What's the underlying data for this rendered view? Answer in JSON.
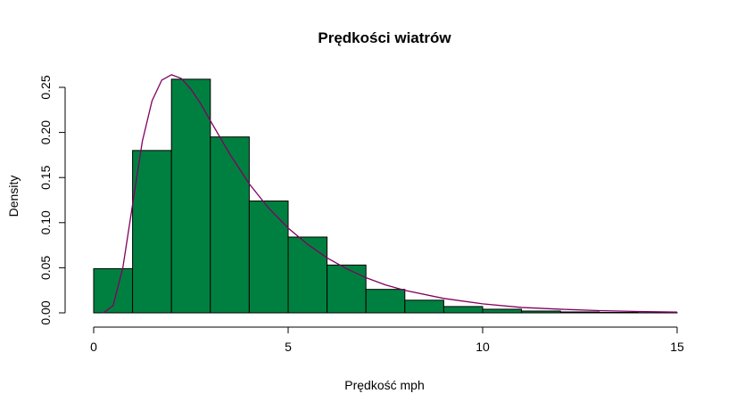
{
  "chart_data": {
    "type": "histogram",
    "title": "Prędkości wiatrów",
    "xlabel": "Prędkość mph",
    "ylabel": "Density",
    "xlim": [
      0,
      15
    ],
    "ylim": [
      0,
      0.25
    ],
    "x_ticks": [
      "0",
      "5",
      "10",
      "15"
    ],
    "y_ticks": [
      "0.00",
      "0.05",
      "0.10",
      "0.15",
      "0.20",
      "0.25"
    ],
    "bins": [
      {
        "from": 0,
        "to": 1,
        "density": 0.049
      },
      {
        "from": 1,
        "to": 2,
        "density": 0.18
      },
      {
        "from": 2,
        "to": 3,
        "density": 0.259
      },
      {
        "from": 3,
        "to": 4,
        "density": 0.195
      },
      {
        "from": 4,
        "to": 5,
        "density": 0.124
      },
      {
        "from": 5,
        "to": 6,
        "density": 0.084
      },
      {
        "from": 6,
        "to": 7,
        "density": 0.053
      },
      {
        "from": 7,
        "to": 8,
        "density": 0.026
      },
      {
        "from": 8,
        "to": 9,
        "density": 0.014
      },
      {
        "from": 9,
        "to": 10,
        "density": 0.007
      },
      {
        "from": 10,
        "to": 11,
        "density": 0.004
      },
      {
        "from": 11,
        "to": 12,
        "density": 0.002
      },
      {
        "from": 12,
        "to": 13,
        "density": 0.001
      },
      {
        "from": 13,
        "to": 14,
        "density": 0.0005
      },
      {
        "from": 14,
        "to": 15,
        "density": 0.0003
      }
    ],
    "density_curve": {
      "x": [
        0.25,
        0.5,
        0.75,
        1.0,
        1.25,
        1.5,
        1.75,
        2.0,
        2.25,
        2.5,
        2.75,
        3.0,
        3.5,
        4.0,
        4.5,
        5.0,
        5.5,
        6.0,
        6.5,
        7.0,
        7.5,
        8.0,
        9.0,
        10.0,
        11.0,
        12.0,
        13.0,
        14.0,
        15.0
      ],
      "y": [
        0.0,
        0.008,
        0.05,
        0.12,
        0.19,
        0.235,
        0.258,
        0.264,
        0.26,
        0.248,
        0.232,
        0.213,
        0.176,
        0.143,
        0.116,
        0.094,
        0.076,
        0.061,
        0.049,
        0.039,
        0.031,
        0.025,
        0.016,
        0.01,
        0.006,
        0.004,
        0.0025,
        0.0015,
        0.0008
      ]
    },
    "grid": false,
    "colors": {
      "bars": "#008040",
      "curve": "#800060"
    }
  }
}
